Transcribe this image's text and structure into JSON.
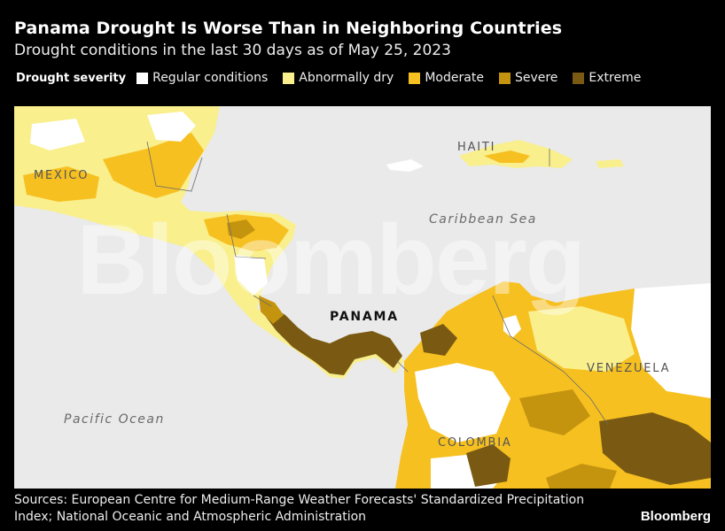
{
  "header": {
    "title": "Panama Drought Is Worse Than in Neighboring Countries",
    "subtitle": "Drought conditions in the last 30 days as of May 25, 2023"
  },
  "legend": {
    "title": "Drought severity",
    "items": [
      {
        "label": "Regular conditions",
        "color": "#ffffff"
      },
      {
        "label": "Abnormally dry",
        "color": "#f9ef8c"
      },
      {
        "label": "Moderate",
        "color": "#f6c021"
      },
      {
        "label": "Severe",
        "color": "#c4940f"
      },
      {
        "label": "Extreme",
        "color": "#7a5a12"
      }
    ]
  },
  "map": {
    "background_color": "#eaeaea",
    "labels": {
      "mexico": "MEXICO",
      "haiti": "HAITI",
      "caribbean_sea": "Caribbean Sea",
      "panama": "PANAMA",
      "venezuela": "VENEZUELA",
      "pacific_ocean": "Pacific Ocean",
      "colombia": "COLOMBIA"
    },
    "watermark": "Bloomberg"
  },
  "footer": {
    "sources_line1": "Sources: European Centre for Medium-Range Weather Forecasts' Standardized Precipitation",
    "sources_line2": "Index; National Oceanic and Atmospheric Administration",
    "brand": "Bloomberg"
  }
}
